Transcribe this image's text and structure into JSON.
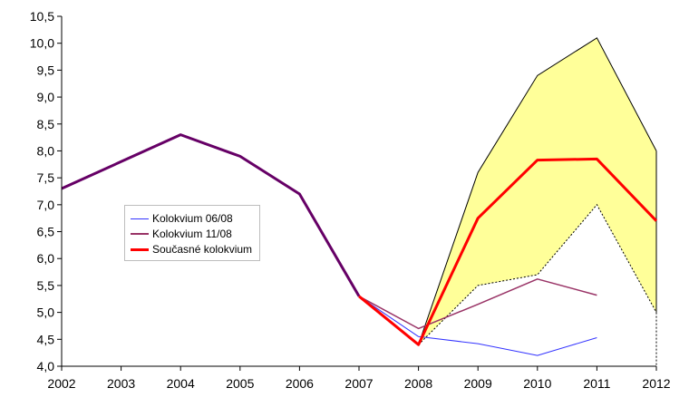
{
  "chart_data": {
    "type": "line",
    "x": [
      2002,
      2003,
      2004,
      2005,
      2006,
      2007,
      2008,
      2009,
      2010,
      2011,
      2012
    ],
    "xlim": [
      2002,
      2012
    ],
    "ylim": [
      4.0,
      10.5
    ],
    "y_ticks": [
      "4,0",
      "4,5",
      "5,0",
      "5,5",
      "6,0",
      "6,5",
      "7,0",
      "7,5",
      "8,0",
      "8,5",
      "9,0",
      "9,5",
      "10,0",
      "10,5"
    ],
    "x_ticks": [
      "2002",
      "2003",
      "2004",
      "2005",
      "2006",
      "2007",
      "2008",
      "2009",
      "2010",
      "2011",
      "2012"
    ],
    "grid": false,
    "legend_placement": "left-center",
    "band": {
      "fill": "#ffff99",
      "upper": [
        {
          "x": 2008,
          "y": 4.4
        },
        {
          "x": 2009,
          "y": 7.6
        },
        {
          "x": 2010,
          "y": 9.4
        },
        {
          "x": 2011,
          "y": 10.1
        },
        {
          "x": 2012,
          "y": 8.0
        }
      ],
      "lower": [
        {
          "x": 2008,
          "y": 4.4
        },
        {
          "x": 2009,
          "y": 5.5
        },
        {
          "x": 2010,
          "y": 5.7
        },
        {
          "x": 2011,
          "y": 7.0
        },
        {
          "x": 2012,
          "y": 5.0
        }
      ]
    },
    "history": {
      "color": "#660066",
      "points": [
        {
          "x": 2002,
          "y": 7.3
        },
        {
          "x": 2003,
          "y": 7.8
        },
        {
          "x": 2004,
          "y": 8.3
        },
        {
          "x": 2005,
          "y": 7.9
        },
        {
          "x": 2006,
          "y": 7.2
        },
        {
          "x": 2007,
          "y": 5.3
        }
      ]
    },
    "series": [
      {
        "name": "Kolokvium 06/08",
        "color": "#3333ff",
        "width": 1,
        "points": [
          {
            "x": 2007,
            "y": 5.3
          },
          {
            "x": 2008,
            "y": 4.55
          },
          {
            "x": 2009,
            "y": 4.42
          },
          {
            "x": 2010,
            "y": 4.2
          },
          {
            "x": 2011,
            "y": 4.53
          }
        ]
      },
      {
        "name": "Kolokvium 11/08",
        "color": "#993366",
        "width": 1.5,
        "points": [
          {
            "x": 2007,
            "y": 5.3
          },
          {
            "x": 2008,
            "y": 4.7
          },
          {
            "x": 2009,
            "y": 5.15
          },
          {
            "x": 2010,
            "y": 5.62
          },
          {
            "x": 2011,
            "y": 5.32
          }
        ]
      },
      {
        "name": "Současné kolokvium",
        "color": "#ff0000",
        "width": 3,
        "points": [
          {
            "x": 2007,
            "y": 5.3
          },
          {
            "x": 2008,
            "y": 4.4
          },
          {
            "x": 2009,
            "y": 6.75
          },
          {
            "x": 2010,
            "y": 7.83
          },
          {
            "x": 2011,
            "y": 7.85
          },
          {
            "x": 2012,
            "y": 6.7
          }
        ]
      }
    ]
  }
}
